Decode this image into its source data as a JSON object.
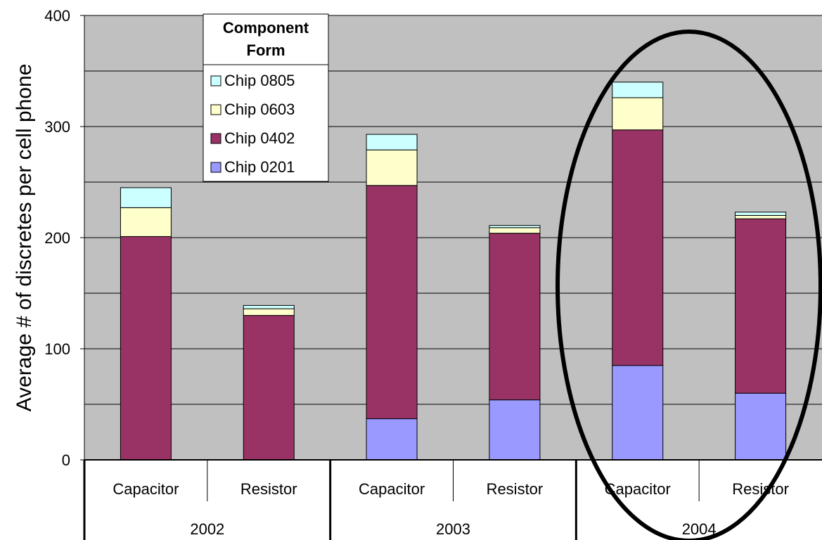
{
  "chart_data": {
    "type": "bar",
    "stacked": true,
    "ylabel": "Average # of discretes per cell phone",
    "ylim": [
      0,
      400
    ],
    "yticks": [
      "0",
      "100",
      "200",
      "300",
      "400"
    ],
    "grid": true,
    "groups": [
      {
        "label": "2002",
        "categories": [
          "Capacitor",
          "Resistor"
        ]
      },
      {
        "label": "2003",
        "categories": [
          "Capacitor",
          "Resistor"
        ]
      },
      {
        "label": "2004",
        "categories": [
          "Capacitor",
          "Resistor"
        ]
      }
    ],
    "categories": [
      "Capacitor",
      "Resistor",
      "Capacitor",
      "Resistor",
      "Capacitor",
      "Resistor"
    ],
    "series": [
      {
        "name": "Chip 0201",
        "color": "#9999ff",
        "values": [
          0,
          0,
          37,
          54,
          85,
          60
        ]
      },
      {
        "name": "Chip 0402",
        "color": "#993366",
        "values": [
          201,
          130,
          210,
          150,
          212,
          157
        ]
      },
      {
        "name": "Chip 0603",
        "color": "#ffffcc",
        "values": [
          26,
          6,
          32,
          5,
          29,
          3
        ]
      },
      {
        "name": "Chip 0805",
        "color": "#ccffff",
        "values": [
          18,
          3,
          14,
          2,
          14,
          3
        ]
      }
    ],
    "legend": {
      "title_line1": "Component",
      "title_line2": "Form",
      "placement": "top-left",
      "entries": [
        "Chip 0805",
        "Chip 0603",
        "Chip 0402",
        "Chip 0201"
      ],
      "entry_colors": [
        "#ccffff",
        "#ffffcc",
        "#993366",
        "#9999ff"
      ]
    },
    "annotation": {
      "shape": "ellipse",
      "encloses": "2004"
    },
    "plot_background": "#c0c0c0"
  }
}
